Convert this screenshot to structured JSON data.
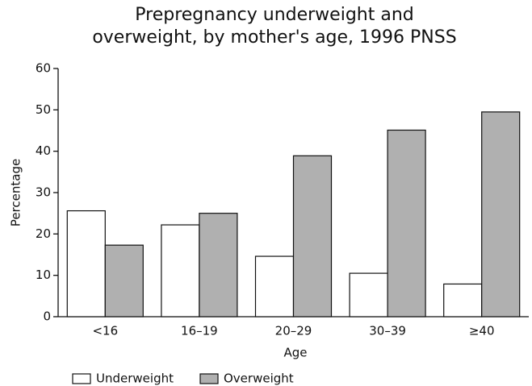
{
  "chart_data": {
    "type": "bar",
    "title": [
      "Prepregnancy underweight and",
      "overweight, by mother's age, 1996 PNSS"
    ],
    "x_label": "Age",
    "y_label": "Percentage",
    "categories": [
      "<16",
      "16–19",
      "20–29",
      "30–39",
      "≥40"
    ],
    "series": [
      {
        "name": "Underweight",
        "color": "#ffffff",
        "values": [
          25.6,
          22.2,
          14.6,
          10.5,
          7.9
        ]
      },
      {
        "name": "Overweight",
        "color": "#b0b0b0",
        "values": [
          17.3,
          25.0,
          38.9,
          45.1,
          49.5
        ]
      }
    ],
    "ylim": [
      0,
      60
    ],
    "yticks": [
      0,
      10,
      20,
      30,
      40,
      50,
      60
    ],
    "grid": false
  }
}
